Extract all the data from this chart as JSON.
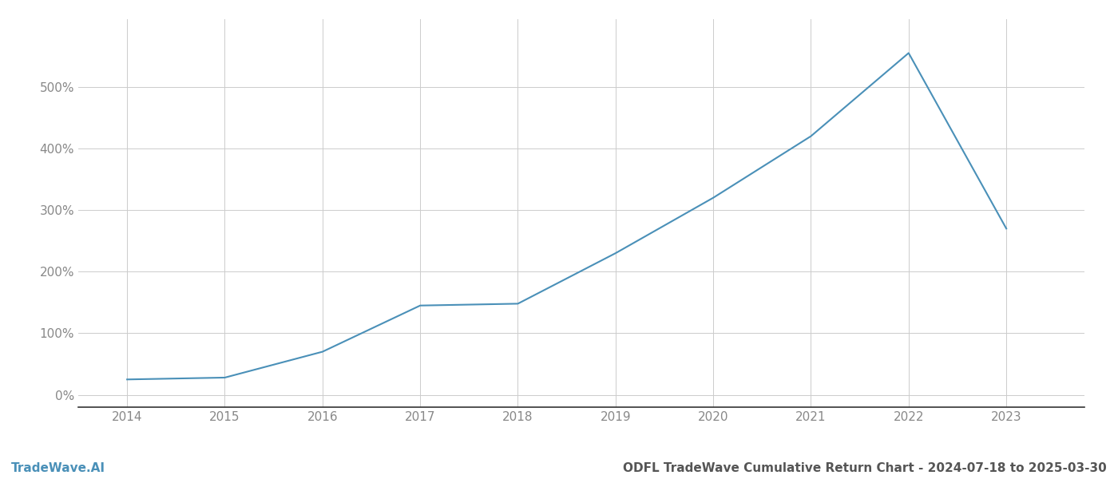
{
  "x_years": [
    2014,
    2015,
    2016,
    2017,
    2018,
    2019,
    2020,
    2021,
    2022,
    2023
  ],
  "y_values": [
    25,
    28,
    70,
    145,
    148,
    230,
    320,
    420,
    555,
    270
  ],
  "line_color": "#4a90b8",
  "line_width": 1.5,
  "background_color": "#ffffff",
  "grid_color": "#cccccc",
  "title": "ODFL TradeWave Cumulative Return Chart - 2024-07-18 to 2025-03-30",
  "title_color": "#555555",
  "title_fontsize": 11,
  "watermark": "TradeWave.AI",
  "watermark_color": "#4a90b8",
  "watermark_fontsize": 11,
  "xlim": [
    2013.5,
    2023.8
  ],
  "ylim": [
    -20,
    610
  ],
  "yticks": [
    0,
    100,
    200,
    300,
    400,
    500
  ],
  "xticks": [
    2014,
    2015,
    2016,
    2017,
    2018,
    2019,
    2020,
    2021,
    2022,
    2023
  ],
  "tick_color": "#888888",
  "tick_fontsize": 11,
  "spine_color": "#333333"
}
